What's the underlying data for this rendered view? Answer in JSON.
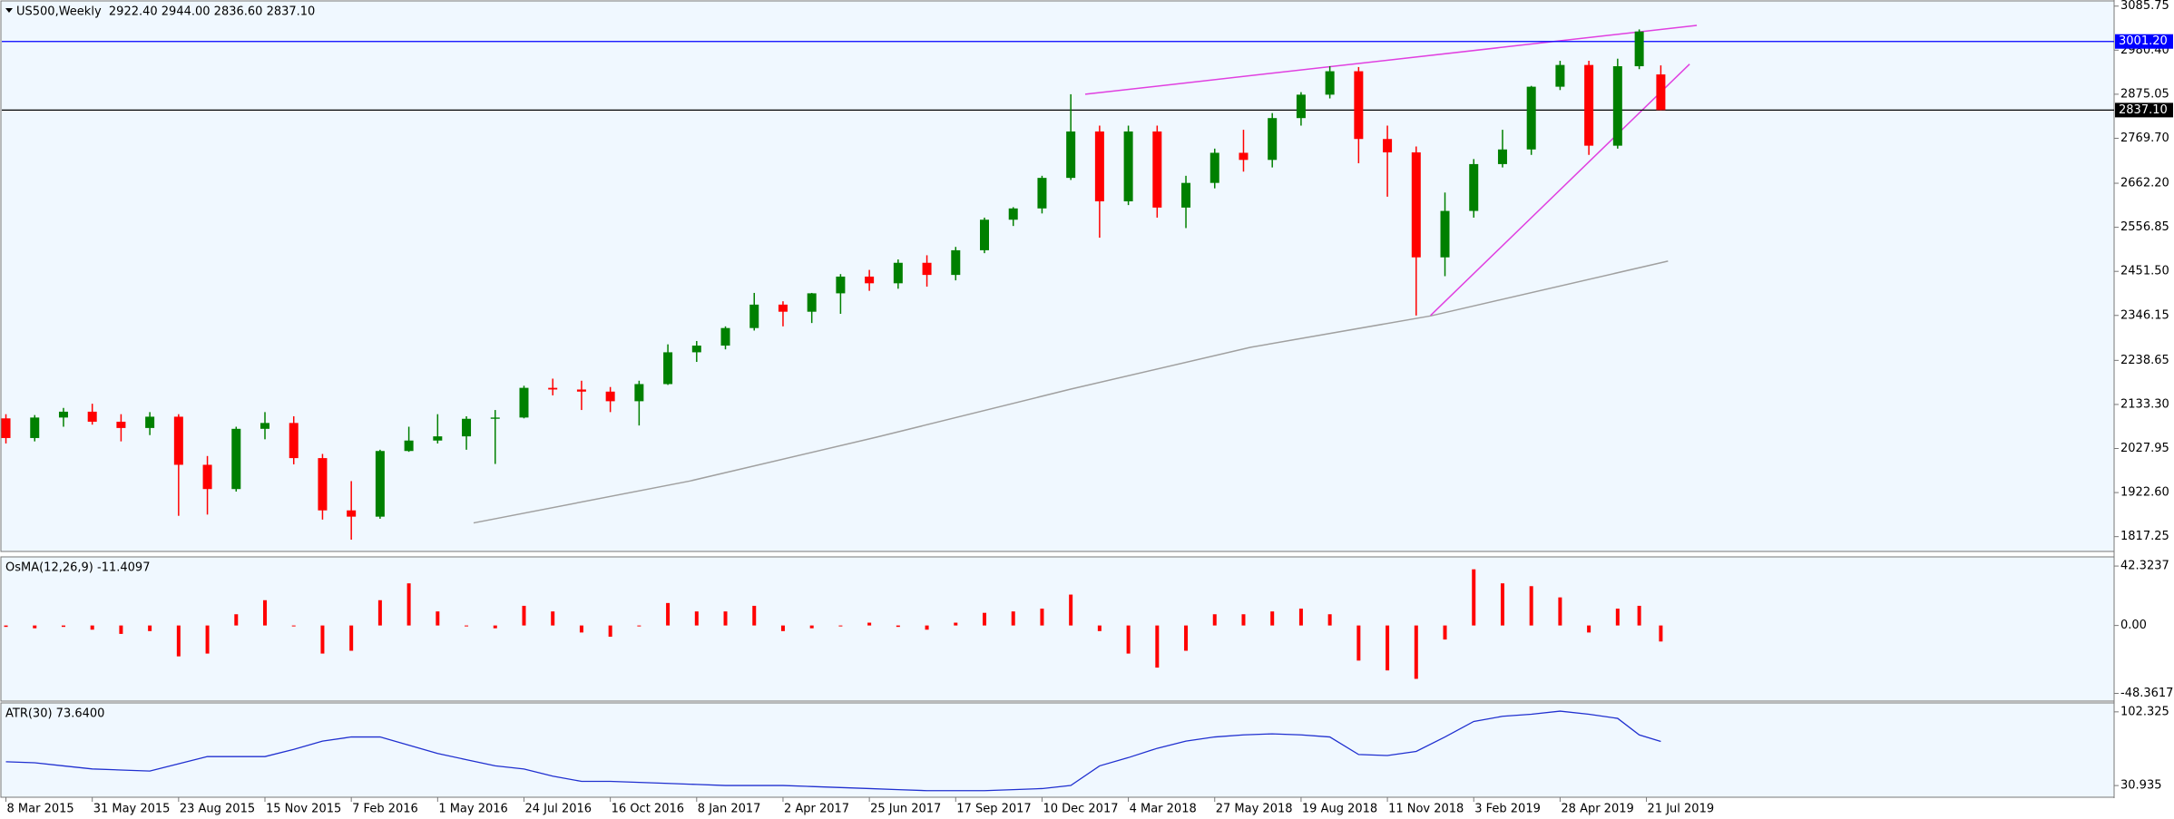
{
  "chart_data": [
    {
      "type": "candlestick",
      "title": "US500,Weekly  2922.40 2944.00 2836.60 2837.10",
      "x": [
        "2015-03-08",
        "2015-04-05",
        "2015-05-03",
        "2015-05-31",
        "2015-06-28",
        "2015-07-26",
        "2015-08-23",
        "2015-09-20",
        "2015-10-18",
        "2015-11-15",
        "2015-12-13",
        "2016-01-10",
        "2016-02-07",
        "2016-03-06",
        "2016-04-03",
        "2016-05-01",
        "2016-05-29",
        "2016-06-26",
        "2016-07-24",
        "2016-08-21",
        "2016-09-18",
        "2016-10-16",
        "2016-11-13",
        "2016-12-11",
        "2017-01-08",
        "2017-02-05",
        "2017-03-05",
        "2017-04-02",
        "2017-04-30",
        "2017-05-28",
        "2017-06-25",
        "2017-07-23",
        "2017-08-20",
        "2017-09-17",
        "2017-10-15",
        "2017-11-12",
        "2017-12-10",
        "2018-01-07",
        "2018-02-04",
        "2018-03-04",
        "2018-04-01",
        "2018-04-29",
        "2018-05-27",
        "2018-06-24",
        "2018-07-22",
        "2018-08-19",
        "2018-09-16",
        "2018-10-14",
        "2018-11-11",
        "2018-12-09",
        "2019-01-06",
        "2019-02-03",
        "2019-03-03",
        "2019-03-31",
        "2019-04-28",
        "2019-05-26",
        "2019-06-23",
        "2019-07-14",
        "2019-08-04"
      ],
      "open": [
        2100,
        2053,
        2102,
        2116,
        2092,
        2077,
        2104,
        1989,
        1931,
        2075,
        2089,
        2005,
        1880,
        1865,
        2022,
        2047,
        2057,
        2099,
        2102,
        2173,
        2169,
        2164,
        2141,
        2182,
        2258,
        2274,
        2316,
        2372,
        2355,
        2399,
        2439,
        2423,
        2472,
        2443,
        2502,
        2575,
        2602,
        2675,
        2786,
        2619,
        2786,
        2604,
        2663,
        2735,
        2718,
        2818,
        2874,
        2930,
        2768,
        2736,
        2485,
        2596,
        2708,
        2743,
        2893,
        2945,
        2752,
        2942,
        2922.4
      ],
      "high": [
        2110,
        2108,
        2125,
        2135,
        2110,
        2115,
        2110,
        2010,
        2080,
        2115,
        2105,
        2015,
        1950,
        2025,
        2080,
        2110,
        2105,
        2120,
        2178,
        2195,
        2190,
        2175,
        2190,
        2277,
        2285,
        2320,
        2400,
        2380,
        2400,
        2445,
        2455,
        2480,
        2490,
        2510,
        2580,
        2605,
        2680,
        2875,
        2800,
        2800,
        2800,
        2680,
        2745,
        2790,
        2830,
        2880,
        2942,
        2940,
        2800,
        2750,
        2640,
        2720,
        2790,
        2895,
        2955,
        2955,
        2960,
        3030,
        2944
      ],
      "low": [
        2040,
        2045,
        2080,
        2085,
        2045,
        2060,
        1867,
        1870,
        1925,
        2050,
        1990,
        1858,
        1810,
        1860,
        2020,
        2040,
        2025,
        1991,
        2100,
        2155,
        2120,
        2115,
        2083,
        2180,
        2235,
        2265,
        2310,
        2320,
        2328,
        2350,
        2405,
        2410,
        2415,
        2430,
        2495,
        2560,
        2590,
        2670,
        2532,
        2610,
        2580,
        2555,
        2650,
        2690,
        2700,
        2800,
        2865,
        2710,
        2630,
        2346,
        2440,
        2580,
        2700,
        2730,
        2885,
        2730,
        2745,
        2935,
        2836.6
      ],
      "close": [
        2053,
        2102,
        2116,
        2092,
        2077,
        2104,
        1989,
        1931,
        2075,
        2089,
        2005,
        1880,
        1865,
        2022,
        2047,
        2057,
        2099,
        2102,
        2173,
        2169,
        2164,
        2141,
        2182,
        2258,
        2274,
        2316,
        2372,
        2355,
        2399,
        2439,
        2423,
        2472,
        2443,
        2502,
        2575,
        2602,
        2675,
        2786,
        2619,
        2786,
        2604,
        2663,
        2735,
        2718,
        2818,
        2874,
        2930,
        2768,
        2736,
        2485,
        2596,
        2708,
        2743,
        2893,
        2945,
        2752,
        2942,
        3025,
        2837.1
      ],
      "up_color": "#008000",
      "down_color": "#ff0000",
      "xlim": [
        "2015-03-04",
        "2020-10-18"
      ],
      "xticks": [
        {
          "value": "2015-03-08",
          "label": "8 Mar 2015"
        },
        {
          "value": "2015-05-31",
          "label": "31 May 2015"
        },
        {
          "value": "2015-08-23",
          "label": "23 Aug 2015"
        },
        {
          "value": "2015-11-15",
          "label": "15 Nov 2015"
        },
        {
          "value": "2016-02-07",
          "label": "7 Feb 2016"
        },
        {
          "value": "2016-05-01",
          "label": "1 May 2016"
        },
        {
          "value": "2016-07-24",
          "label": "24 Jul 2016"
        },
        {
          "value": "2016-10-16",
          "label": "16 Oct 2016"
        },
        {
          "value": "2017-01-08",
          "label": "8 Jan 2017"
        },
        {
          "value": "2017-04-02",
          "label": "2 Apr 2017"
        },
        {
          "value": "2017-06-25",
          "label": "25 Jun 2017"
        },
        {
          "value": "2017-09-17",
          "label": "17 Sep 2017"
        },
        {
          "value": "2017-12-10",
          "label": "10 Dec 2017"
        },
        {
          "value": "2018-03-04",
          "label": "4 Mar 2018"
        },
        {
          "value": "2018-05-27",
          "label": "27 May 2018"
        },
        {
          "value": "2018-08-19",
          "label": "19 Aug 2018"
        },
        {
          "value": "2018-11-11",
          "label": "11 Nov 2018"
        },
        {
          "value": "2019-02-03",
          "label": "3 Feb 2019"
        },
        {
          "value": "2019-04-28",
          "label": "28 Apr 2019"
        },
        {
          "value": "2019-07-21",
          "label": "21 Jul 2019"
        }
      ],
      "ylim": [
        1784,
        3096
      ],
      "yticks": [
        3085.75,
        {
          "value": 2980.4,
          "label": "2980.40"
        },
        2875.05,
        {
          "value": 2769.7,
          "label": "2769.70"
        },
        {
          "value": 2662.2,
          "label": "2662.20"
        },
        2556.85,
        {
          "value": 2451.5,
          "label": "2451.50"
        },
        2346.15,
        2238.65,
        {
          "value": 2133.3,
          "label": "2133.30"
        },
        2027.95,
        {
          "value": 1922.6,
          "label": "1922.60"
        },
        1817.25
      ],
      "hlines": [
        {
          "value": 3001.2,
          "label": "3001.20",
          "color": "#0000ff"
        },
        {
          "value": 2837.1,
          "label": "2837.10",
          "color": "#000000"
        }
      ],
      "lines": [
        {
          "color": "#a0a0a0",
          "x": [
            "2016-06-05",
            "2017-01-01",
            "2017-07-02",
            "2018-01-07",
            "2018-07-01",
            "2018-12-23",
            "2019-08-11"
          ],
          "values": [
            1850,
            1950,
            2055,
            2170,
            2270,
            2345,
            2476
          ]
        },
        {
          "color": "#e040e0",
          "x": [
            "2018-01-21",
            "2019-09-08"
          ],
          "values": [
            2875,
            3039.6
          ]
        },
        {
          "color": "#e040e0",
          "x": [
            "2018-12-23",
            "2019-09-01"
          ],
          "values": [
            2346,
            2947
          ]
        }
      ]
    },
    {
      "type": "bar",
      "title": "OsMA(12,26,9) -11.4097",
      "color": "#ff0000",
      "values": [
        -1,
        -2,
        -1,
        -3,
        -6,
        -4,
        -22,
        -20,
        8,
        18,
        0,
        -20,
        -18,
        18,
        30,
        10,
        0,
        -2,
        14,
        10,
        -5,
        -8,
        0,
        16,
        10,
        10,
        14,
        -4,
        -2,
        0,
        2,
        -1,
        -3,
        2,
        9,
        10,
        12,
        22,
        -4,
        -20,
        -30,
        -18,
        8,
        8,
        10,
        12,
        8,
        -25,
        -32,
        -38,
        -10,
        40,
        30,
        28,
        20,
        -5,
        12,
        14,
        -11.4097
      ],
      "ylim": [
        -53.2,
        48.2
      ],
      "yticks": [
        42.3237,
        {
          "value": 0,
          "label": "0.00"
        },
        -48.3617
      ]
    },
    {
      "type": "line",
      "title": "ATR(30) 73.6400",
      "color": "#2030d0",
      "values": [
        54,
        53,
        50,
        47,
        46,
        45,
        52,
        59,
        59,
        59,
        66,
        74,
        78,
        78,
        70,
        62,
        56,
        50,
        47,
        40,
        35,
        35,
        34,
        33,
        32,
        31,
        31,
        31,
        30,
        29,
        28,
        27,
        26,
        26,
        26,
        27,
        28,
        31,
        50,
        58,
        67,
        74,
        78,
        80,
        81,
        80,
        78,
        61,
        60,
        64,
        78,
        93,
        98,
        100,
        103,
        100,
        96,
        80,
        73.64
      ],
      "ylim": [
        20.5,
        110.1
      ],
      "yticks": [
        102.325,
        30.935
      ]
    }
  ]
}
